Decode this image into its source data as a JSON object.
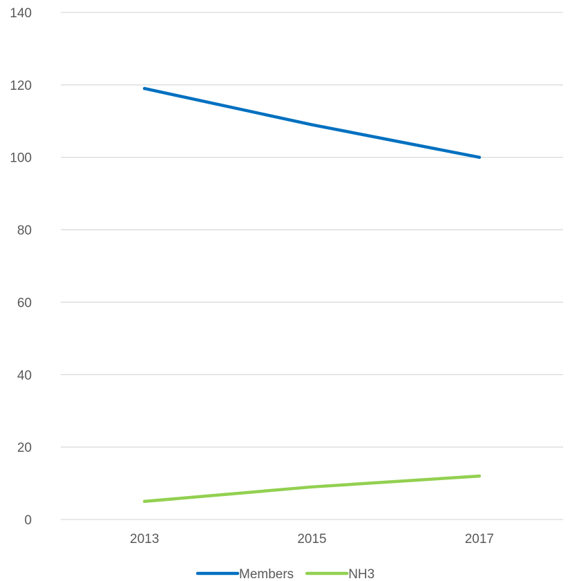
{
  "chart_data": {
    "type": "line",
    "title": "",
    "xlabel": "",
    "ylabel": "",
    "x": [
      "2013",
      "2015",
      "2017"
    ],
    "ylim": [
      0,
      140
    ],
    "y_ticks": [
      0,
      20,
      40,
      60,
      80,
      100,
      120,
      140
    ],
    "grid": true,
    "legend_position": "bottom",
    "series": [
      {
        "name": "Members",
        "color": "#0070C0",
        "values": [
          119,
          109,
          100
        ]
      },
      {
        "name": "NH3",
        "color": "#92D050",
        "values": [
          5,
          9,
          12
        ]
      }
    ]
  }
}
